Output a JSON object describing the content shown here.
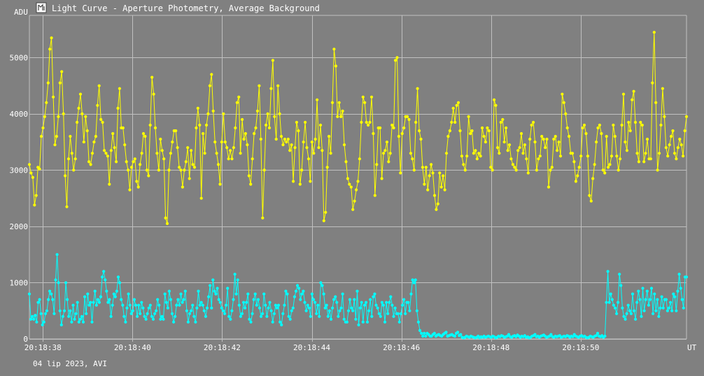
{
  "chart_data": {
    "type": "scatter",
    "title": "Light Curve - Aperture Photometry, Average Background",
    "ylabel": "ADU",
    "xlabel": "UT",
    "footer": "04 lip 2023, AVI",
    "ylim": [
      0,
      5750
    ],
    "xlim": [
      37.7,
      52.36
    ],
    "y_ticks": [
      0,
      1000,
      2000,
      3000,
      4000,
      5000
    ],
    "y_tick_labels": [
      "0",
      "1000",
      "2000",
      "3000",
      "4000",
      "5000"
    ],
    "x_ticks": [
      38,
      40,
      42,
      44,
      46,
      48,
      50
    ],
    "x_tick_labels": [
      "20:18:38",
      "20:18:40",
      "20:18:42",
      "20:18:44",
      "20:18:46",
      "20:18:48",
      "20:18:50"
    ],
    "grid": true,
    "colors": {
      "background": "#808080",
      "grid": "#c0c0c0",
      "series1": "#ffff00",
      "series2": "#00ffff"
    },
    "series": [
      {
        "color": "#ffff00",
        "values": [
          3100,
          2950,
          2870,
          2380,
          2550,
          3050,
          3020,
          3600,
          3750,
          3950,
          4200,
          4550,
          5150,
          5350,
          4300,
          3450,
          3600,
          3950,
          4550,
          4750,
          4000,
          2900,
          2350,
          3200,
          3600,
          3300,
          3000,
          3200,
          3850,
          4100,
          4350,
          4000,
          3500,
          3950,
          3700,
          3150,
          3100,
          3300,
          3500,
          3600,
          4150,
          4500,
          3900,
          3850,
          3350,
          3300,
          3250,
          2750,
          3350,
          3650,
          3400,
          3150,
          4100,
          4450,
          3750,
          3750,
          3450,
          3150,
          3000,
          2650,
          3050,
          3150,
          3200,
          2800,
          2700,
          3100,
          3300,
          3650,
          3600,
          3000,
          2900,
          3800,
          4650,
          4350,
          3750,
          3300,
          3000,
          3550,
          3350,
          3200,
          2150,
          2050,
          3000,
          3300,
          3500,
          3700,
          3700,
          3400,
          3050,
          3000,
          2700,
          3000,
          3150,
          3400,
          2850,
          3350,
          3100,
          3050,
          3750,
          4100,
          3800,
          2500,
          3650,
          3300,
          3800,
          4000,
          4500,
          4700,
          4050,
          3500,
          3300,
          3100,
          2750,
          3500,
          4000,
          3500,
          3400,
          3200,
          3350,
          3200,
          3400,
          3750,
          4200,
          4300,
          3300,
          3900,
          3550,
          3650,
          3450,
          2900,
          2750,
          3200,
          3650,
          3750,
          4050,
          4500,
          3550,
          2150,
          3000,
          3800,
          4000,
          3750,
          4450,
          4950,
          3950,
          3550,
          4500,
          4000,
          3600,
          3450,
          3550,
          3500,
          3550,
          3350,
          3450,
          2800,
          3400,
          3850,
          3700,
          2750,
          3000,
          3500,
          3850,
          3400,
          3200,
          2800,
          3500,
          3300,
          3550,
          4250,
          3400,
          3800,
          3350,
          2100,
          2250,
          3050,
          3600,
          3300,
          4200,
          5150,
          4850,
          3950,
          4200,
          3950,
          4050,
          3450,
          3150,
          2850,
          2750,
          2700,
          2300,
          2450,
          2650,
          2800,
          3200,
          3850,
          4300,
          4200,
          3850,
          3800,
          3850,
          4300,
          3650,
          2550,
          3100,
          3750,
          3750,
          2850,
          3300,
          3350,
          3500,
          3150,
          3300,
          3800,
          3750,
          4950,
          5000,
          3600,
          2950,
          3650,
          3750,
          3950,
          3950,
          3900,
          3300,
          3200,
          3000,
          3850,
          4450,
          3700,
          3550,
          3050,
          2750,
          3050,
          2650,
          2900,
          3100,
          2950,
          2550,
          2300,
          2400,
          2950,
          2700,
          2900,
          2650,
          3300,
          3600,
          3700,
          3850,
          4100,
          3850,
          4150,
          4200,
          3700,
          3250,
          3100,
          3000,
          3250,
          3950,
          3650,
          3700,
          3300,
          3350,
          3200,
          3300,
          3250,
          3750,
          3600,
          3500,
          3750,
          3700,
          3050,
          3000,
          4250,
          4150,
          3400,
          3300,
          3850,
          3900,
          3500,
          3750,
          3350,
          3450,
          3200,
          3100,
          3050,
          3000,
          3350,
          3400,
          3650,
          3300,
          3450,
          3200,
          2950,
          3550,
          3800,
          3850,
          3500,
          3000,
          3200,
          3250,
          3600,
          3550,
          3400,
          3550,
          2700,
          3000,
          3050,
          3550,
          3600,
          3350,
          3500,
          3250,
          4350,
          4200,
          4000,
          3750,
          3600,
          3300,
          3300,
          3150,
          2800,
          2900,
          3050,
          3250,
          3750,
          3800,
          3650,
          3250,
          2550,
          2450,
          2850,
          3100,
          3500,
          3750,
          3800,
          3650,
          3000,
          2950,
          3600,
          3050,
          3100,
          3250,
          3800,
          3600,
          3250,
          3000,
          3200,
          3800,
          4350,
          3500,
          3350,
          3850,
          3700,
          4250,
          4400,
          3850,
          3300,
          3150,
          3850,
          3800,
          3150,
          3300,
          3550,
          3200,
          3200,
          4550,
          5450,
          4200,
          3000,
          3300,
          3800,
          4450,
          3950,
          3400,
          3250,
          3450,
          3600,
          3700,
          3300,
          3200,
          3400,
          3550,
          3450,
          3250,
          3700,
          3950
        ]
      },
      {
        "color": "#00ffff",
        "values": [
          800,
          350,
          400,
          350,
          420,
          300,
          650,
          700,
          450,
          250,
          300,
          450,
          500,
          700,
          850,
          800,
          700,
          450,
          1050,
          1500,
          1000,
          500,
          250,
          400,
          500,
          1000,
          700,
          400,
          500,
          300,
          600,
          350,
          450,
          650,
          300,
          350,
          400,
          300,
          750,
          450,
          800,
          600,
          650,
          300,
          650,
          850,
          600,
          700,
          650,
          750,
          1100,
          1200,
          1050,
          850,
          650,
          700,
          400,
          600,
          800,
          750,
          850,
          1100,
          1000,
          700,
          600,
          400,
          300,
          550,
          800,
          600,
          450,
          500,
          700,
          600,
          400,
          600,
          450,
          650,
          550,
          400,
          350,
          450,
          550,
          600,
          400,
          350,
          450,
          500,
          700,
          600,
          350,
          400,
          350,
          800,
          650,
          550,
          850,
          700,
          450,
          300,
          400,
          600,
          700,
          600,
          800,
          650,
          700,
          850,
          500,
          300,
          450,
          500,
          600,
          400,
          300,
          550,
          850,
          600,
          650,
          600,
          500,
          400,
          550,
          750,
          950,
          550,
          1050,
          850,
          800,
          900,
          700,
          650,
          550,
          500,
          450,
          600,
          900,
          400,
          350,
          500,
          700,
          1150,
          800,
          1050,
          600,
          400,
          450,
          650,
          550,
          650,
          800,
          350,
          300,
          450,
          700,
          800,
          600,
          700,
          550,
          400,
          450,
          800,
          600,
          400,
          550,
          650,
          500,
          300,
          450,
          600,
          550,
          600,
          300,
          250,
          450,
          600,
          850,
          800,
          400,
          350,
          500,
          550,
          750,
          850,
          950,
          900,
          700,
          800,
          850,
          650,
          500,
          600,
          550,
          400,
          800,
          700,
          650,
          450,
          600,
          400,
          1000,
          950,
          800,
          550,
          600,
          400,
          500,
          350,
          550,
          700,
          750,
          650,
          400,
          500,
          550,
          800,
          350,
          300,
          300,
          500,
          700,
          550,
          500,
          700,
          350,
          850,
          250,
          550,
          650,
          300,
          600,
          650,
          300,
          500,
          700,
          400,
          750,
          800,
          600,
          550,
          450,
          400,
          650,
          600,
          300,
          650,
          450,
          650,
          750,
          600,
          400,
          550,
          450,
          450,
          300,
          450,
          600,
          700,
          450,
          650,
          650,
          500,
          800,
          1050,
          1000,
          1050,
          500,
          300,
          150,
          100,
          50,
          100,
          50,
          100,
          80,
          50,
          50,
          80,
          100,
          50,
          70,
          80,
          60,
          50,
          80,
          100,
          120,
          50,
          60,
          70,
          80,
          60,
          50,
          100,
          120,
          60,
          80,
          30,
          20,
          30,
          50,
          40,
          30,
          50,
          40,
          30,
          20,
          30,
          50,
          20,
          40,
          30,
          50,
          30,
          40,
          50,
          40,
          30,
          50,
          40,
          20,
          30,
          50,
          40,
          60,
          50,
          30,
          40,
          50,
          80,
          40,
          30,
          50,
          60,
          40,
          70,
          50,
          30,
          50,
          40,
          60,
          30,
          40,
          20,
          30,
          50,
          60,
          80,
          40,
          50,
          30,
          50,
          60,
          70,
          50,
          30,
          40,
          50,
          80,
          40,
          30,
          50,
          40,
          50,
          60,
          30,
          40,
          50,
          40,
          60,
          50,
          30,
          50,
          40,
          80,
          50,
          40,
          30,
          50,
          60,
          40,
          50,
          30,
          20,
          30,
          50,
          40,
          30,
          50,
          60,
          100,
          50,
          40,
          60,
          30,
          50,
          650,
          1200,
          650,
          800,
          700,
          600,
          550,
          450,
          650,
          1150,
          950,
          550,
          400,
          350,
          450,
          600,
          500,
          450,
          800,
          500,
          350,
          650,
          850,
          700,
          400,
          900,
          500,
          700,
          850,
          600,
          700,
          900,
          450,
          800,
          500,
          700,
          400,
          550,
          750,
          550,
          700,
          700,
          500,
          550,
          650,
          500,
          800,
          750,
          500,
          850,
          1150,
          900,
          700,
          550,
          1100,
          1100
        ]
      }
    ]
  }
}
